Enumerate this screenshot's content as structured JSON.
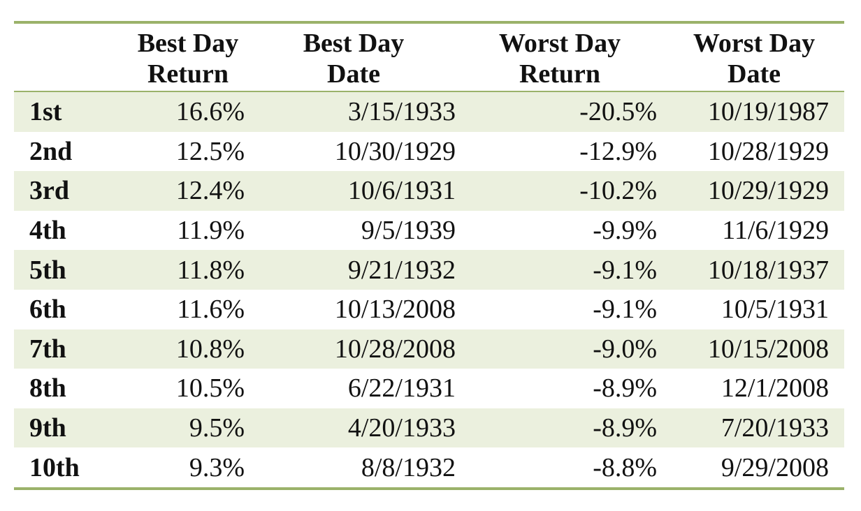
{
  "table": {
    "headers": [
      {
        "line1": "",
        "line2": ""
      },
      {
        "line1": "Best Day",
        "line2": "Return"
      },
      {
        "line1": "Best Day",
        "line2": "Date"
      },
      {
        "line1": "Worst Day",
        "line2": "Return"
      },
      {
        "line1": "Worst Day",
        "line2": "Date"
      }
    ],
    "rows": [
      {
        "rank": "1st",
        "best_return": "16.6%",
        "best_date": "3/15/1933",
        "worst_return": "-20.5%",
        "worst_date": "10/19/1987"
      },
      {
        "rank": "2nd",
        "best_return": "12.5%",
        "best_date": "10/30/1929",
        "worst_return": "-12.9%",
        "worst_date": "10/28/1929"
      },
      {
        "rank": "3rd",
        "best_return": "12.4%",
        "best_date": "10/6/1931",
        "worst_return": "-10.2%",
        "worst_date": "10/29/1929"
      },
      {
        "rank": "4th",
        "best_return": "11.9%",
        "best_date": "9/5/1939",
        "worst_return": "-9.9%",
        "worst_date": "11/6/1929"
      },
      {
        "rank": "5th",
        "best_return": "11.8%",
        "best_date": "9/21/1932",
        "worst_return": "-9.1%",
        "worst_date": "10/18/1937"
      },
      {
        "rank": "6th",
        "best_return": "11.6%",
        "best_date": "10/13/2008",
        "worst_return": "-9.1%",
        "worst_date": "10/5/1931"
      },
      {
        "rank": "7th",
        "best_return": "10.8%",
        "best_date": "10/28/2008",
        "worst_return": "-9.0%",
        "worst_date": "10/15/2008"
      },
      {
        "rank": "8th",
        "best_return": "10.5%",
        "best_date": "6/22/1931",
        "worst_return": "-8.9%",
        "worst_date": "12/1/2008"
      },
      {
        "rank": "9th",
        "best_return": "9.5%",
        "best_date": "4/20/1933",
        "worst_return": "-8.9%",
        "worst_date": "7/20/1933"
      },
      {
        "rank": "10th",
        "best_return": "9.3%",
        "best_date": "8/8/1932",
        "worst_return": "-8.8%",
        "worst_date": "9/29/2008"
      }
    ]
  },
  "colors": {
    "rule": "#9bb26a",
    "band": "#ebf0de"
  }
}
